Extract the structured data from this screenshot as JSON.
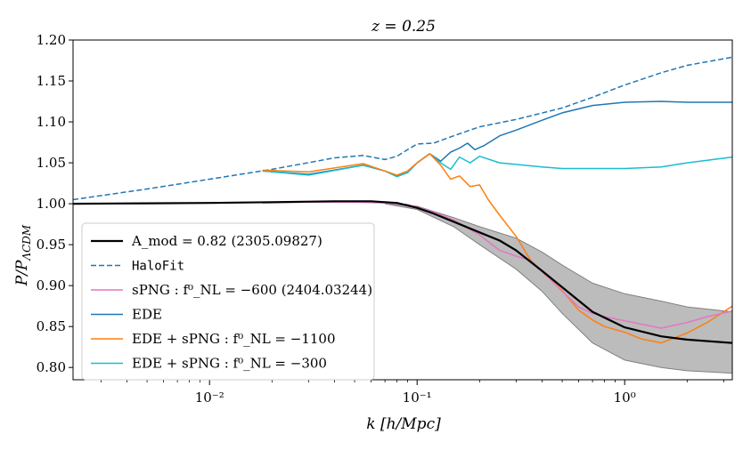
{
  "chart_data": {
    "type": "line",
    "title": "z = 0.25",
    "xlabel": "k [h/Mpc]",
    "ylabel": "P/P_ΛCDM",
    "xscale": "log",
    "xlim": [
      0.0022,
      3.3
    ],
    "ylim": [
      0.785,
      1.2
    ],
    "xticks": [
      0.01,
      0.1,
      1.0
    ],
    "xtick_labels": [
      "10⁻²",
      "10⁻¹",
      "10⁰"
    ],
    "yticks": [
      0.8,
      0.85,
      0.9,
      0.95,
      1.0,
      1.05,
      1.1,
      1.15,
      1.2
    ],
    "ytick_labels": [
      "0.80",
      "0.85",
      "0.90",
      "0.95",
      "1.00",
      "1.05",
      "1.10",
      "1.15",
      "1.20"
    ],
    "grid": false,
    "legend_location": "lower-left",
    "colors": {
      "amod": "#000000",
      "halofit": "#1f77b4",
      "spng": "#e377c2",
      "ede": "#1f77b4",
      "ede_spng_1100": "#ff7f0e",
      "ede_spng_300": "#17becf",
      "band_fill": "#b0b0b0",
      "band_edge": "#808080"
    },
    "series": [
      {
        "id": "amod",
        "name": "A_mod = 0.82 (2305.09827)",
        "style": "solid",
        "x": [
          0.0022,
          0.005,
          0.01,
          0.02,
          0.04,
          0.06,
          0.08,
          0.1,
          0.12,
          0.15,
          0.2,
          0.25,
          0.3,
          0.4,
          0.5,
          0.7,
          1.0,
          1.5,
          2.0,
          3.3
        ],
        "y": [
          1.0,
          1.0005,
          1.001,
          1.002,
          1.003,
          1.003,
          1.001,
          0.995,
          0.988,
          0.978,
          0.965,
          0.955,
          0.943,
          0.918,
          0.898,
          0.868,
          0.849,
          0.838,
          0.834,
          0.83
        ]
      },
      {
        "id": "halofit",
        "name": "HaloFit",
        "style": "dashed",
        "x": [
          0.0022,
          0.005,
          0.01,
          0.02,
          0.04,
          0.055,
          0.07,
          0.08,
          0.09,
          0.1,
          0.12,
          0.15,
          0.2,
          0.3,
          0.5,
          0.7,
          1.0,
          1.5,
          2.0,
          3.3
        ],
        "y": [
          1.005,
          1.018,
          1.03,
          1.042,
          1.056,
          1.059,
          1.054,
          1.058,
          1.066,
          1.073,
          1.074,
          1.083,
          1.094,
          1.103,
          1.117,
          1.13,
          1.145,
          1.16,
          1.169,
          1.179
        ]
      },
      {
        "id": "spng",
        "name": "sPNG : f⁰_NL = −600 (2404.03244)",
        "style": "solid",
        "x": [
          0.018,
          0.03,
          0.05,
          0.07,
          0.09,
          0.1,
          0.12,
          0.15,
          0.2,
          0.25,
          0.3,
          0.35,
          0.4,
          0.5,
          0.6,
          0.7,
          0.8,
          1.0,
          1.2,
          1.5,
          2.0,
          2.5,
          3.3
        ],
        "y": [
          1.001,
          1.002,
          1.002,
          1.001,
          0.999,
          0.996,
          0.99,
          0.98,
          0.962,
          0.943,
          0.936,
          0.931,
          0.918,
          0.893,
          0.874,
          0.866,
          0.862,
          0.857,
          0.853,
          0.848,
          0.855,
          0.862,
          0.869
        ]
      },
      {
        "id": "ede",
        "name": "EDE",
        "style": "solid",
        "x": [
          0.018,
          0.03,
          0.055,
          0.07,
          0.08,
          0.09,
          0.1,
          0.115,
          0.13,
          0.145,
          0.16,
          0.175,
          0.19,
          0.21,
          0.25,
          0.3,
          0.4,
          0.5,
          0.7,
          1.0,
          1.5,
          2.0,
          3.3
        ],
        "y": [
          1.04,
          1.036,
          1.047,
          1.04,
          1.034,
          1.038,
          1.05,
          1.061,
          1.052,
          1.063,
          1.068,
          1.074,
          1.066,
          1.071,
          1.083,
          1.09,
          1.102,
          1.111,
          1.12,
          1.124,
          1.125,
          1.124,
          1.124
        ]
      },
      {
        "id": "ede_spng_1100",
        "name": "EDE + sPNG : f⁰_NL = −1100",
        "style": "solid",
        "x": [
          0.018,
          0.03,
          0.055,
          0.07,
          0.08,
          0.09,
          0.1,
          0.115,
          0.13,
          0.145,
          0.16,
          0.18,
          0.2,
          0.22,
          0.25,
          0.3,
          0.35,
          0.4,
          0.5,
          0.6,
          0.7,
          0.8,
          1.0,
          1.2,
          1.5,
          2.0,
          2.5,
          3.3
        ],
        "y": [
          1.041,
          1.039,
          1.049,
          1.04,
          1.035,
          1.04,
          1.05,
          1.061,
          1.047,
          1.03,
          1.034,
          1.021,
          1.023,
          1.005,
          0.986,
          0.96,
          0.932,
          0.917,
          0.894,
          0.87,
          0.858,
          0.85,
          0.843,
          0.835,
          0.83,
          0.842,
          0.855,
          0.875
        ]
      },
      {
        "id": "ede_spng_300",
        "name": "EDE + sPNG : f⁰_NL = −300",
        "style": "solid",
        "x": [
          0.018,
          0.03,
          0.055,
          0.07,
          0.08,
          0.09,
          0.1,
          0.115,
          0.13,
          0.145,
          0.16,
          0.18,
          0.2,
          0.25,
          0.3,
          0.4,
          0.5,
          0.7,
          1.0,
          1.5,
          2.0,
          3.3
        ],
        "y": [
          1.04,
          1.035,
          1.047,
          1.04,
          1.033,
          1.038,
          1.05,
          1.061,
          1.05,
          1.042,
          1.057,
          1.05,
          1.058,
          1.05,
          1.048,
          1.045,
          1.043,
          1.043,
          1.043,
          1.045,
          1.05,
          1.057
        ]
      }
    ],
    "band": {
      "name": "A_mod uncertainty",
      "x": [
        0.07,
        0.1,
        0.15,
        0.2,
        0.3,
        0.4,
        0.5,
        0.7,
        1.0,
        1.5,
        2.0,
        3.3
      ],
      "lower": [
        1.0,
        0.993,
        0.972,
        0.95,
        0.92,
        0.893,
        0.866,
        0.83,
        0.809,
        0.8,
        0.796,
        0.793
      ],
      "upper": [
        1.0,
        0.997,
        0.983,
        0.972,
        0.958,
        0.941,
        0.925,
        0.903,
        0.89,
        0.881,
        0.874,
        0.868
      ]
    }
  }
}
